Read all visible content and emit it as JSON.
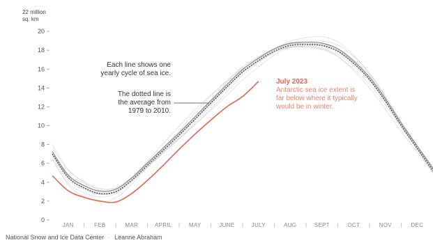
{
  "chart_data": {
    "type": "line",
    "y_unit_line1": "22 million",
    "y_unit_line2": "sq. km",
    "yticks": [
      0,
      2,
      4,
      6,
      8,
      10,
      12,
      14,
      16,
      18,
      20
    ],
    "ylim": [
      0,
      22
    ],
    "months": [
      "JAN",
      "FEB",
      "MAR",
      "APRIL",
      "MAY",
      "JUNE",
      "JULY",
      "AUG",
      "SEPT",
      "OCT",
      "NOV",
      "DEC"
    ],
    "grid": false,
    "series": [
      {
        "role": "average",
        "x": [
          0,
          0.5,
          1,
          1.5,
          2,
          2.5,
          3,
          3.5,
          4,
          4.5,
          5,
          5.5,
          6,
          6.5,
          7,
          7.5,
          8,
          8.5,
          9,
          9.5,
          10,
          10.5,
          11,
          11.5,
          12
        ],
        "values": [
          7.0,
          4.5,
          3.4,
          2.8,
          3.0,
          4.2,
          5.8,
          7.4,
          9.0,
          10.7,
          12.4,
          14.1,
          15.7,
          16.9,
          17.9,
          18.5,
          18.6,
          18.5,
          17.9,
          16.6,
          14.9,
          12.6,
          10.0,
          7.6,
          5.2
        ],
        "color": "#555555"
      },
      {
        "role": "2023",
        "x": [
          0,
          0.5,
          1,
          1.5,
          2,
          2.5,
          3,
          3.5,
          4,
          4.5,
          5,
          5.5,
          6,
          6.5
        ],
        "values": [
          4.7,
          3.1,
          2.4,
          2.0,
          1.9,
          2.8,
          4.2,
          5.8,
          7.5,
          9.1,
          10.6,
          12.0,
          13.1,
          14.7
        ],
        "color": "#e8614a"
      }
    ]
  },
  "annotations": {
    "cycle_line1": "Each line shows one",
    "cycle_line2": "yearly cycle of sea ice.",
    "avg_line1": "The dotted line is",
    "avg_line2": "the average from",
    "avg_line3": "1979 to 2010.",
    "red_title": "July 2023",
    "red_line1": "Antarctic sea ice extent is",
    "red_line2": "far below where it typically",
    "red_line3": "would be in winter."
  },
  "source": {
    "org": "National Snow and Ice Data Center",
    "author": "Leanne Abraham"
  }
}
